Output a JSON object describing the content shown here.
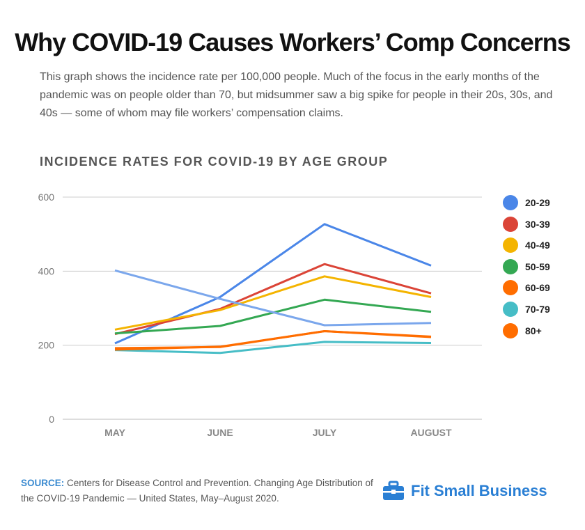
{
  "header": {
    "title": "Why COVID-19 Causes Workers’ Comp Concerns",
    "subtitle": "This graph shows the incidence rate per 100,000 people. Much of the focus in the early months of the pandemic was on people older than 70, but midsummer saw a big spike for people in their 20s, 30s, and 40s — some of whom may file workers’ compensation claims."
  },
  "chart_data": {
    "type": "line",
    "title": "INCIDENCE RATES FOR COVID-19 BY AGE GROUP",
    "xlabel": "",
    "ylabel": "",
    "categories": [
      "MAY",
      "JUNE",
      "JULY",
      "AUGUST"
    ],
    "ylim": [
      0,
      600
    ],
    "yticks": [
      "0",
      "200",
      "400",
      "600"
    ],
    "grid": true,
    "legend_position": "right",
    "series": [
      {
        "name": "20-29",
        "color": "#4a86e8",
        "values": [
          205,
          330,
          527,
          415
        ]
      },
      {
        "name": "30-39",
        "color": "#db4437",
        "values": [
          230,
          298,
          419,
          340
        ]
      },
      {
        "name": "40-49",
        "color": "#f4b400",
        "values": [
          242,
          295,
          386,
          330
        ]
      },
      {
        "name": "50-59",
        "color": "#34a853",
        "values": [
          232,
          252,
          323,
          290
        ]
      },
      {
        "name": "60-69",
        "color": "#ff6d00",
        "values": [
          192,
          195,
          238,
          223
        ]
      },
      {
        "name": "70-79",
        "color": "#46bdc6",
        "values": [
          187,
          179,
          209,
          206
        ]
      },
      {
        "name": "80+",
        "color": "#ff6d00",
        "values": [
          188,
          196,
          238,
          222
        ]
      },
      {
        "name": "",
        "color": "#7ba7ec",
        "values": [
          402,
          325,
          254,
          260
        ]
      }
    ]
  },
  "footer": {
    "source_label": "SOURCE:",
    "source_text": "Centers for Disease Control and Prevention. Changing Age Distribution of the COVID-19 Pandemic — United States, May–August 2020.",
    "brand": "Fit Small Business",
    "brand_icon": "briefcase-icon",
    "brand_color": "#2a7fd4"
  }
}
